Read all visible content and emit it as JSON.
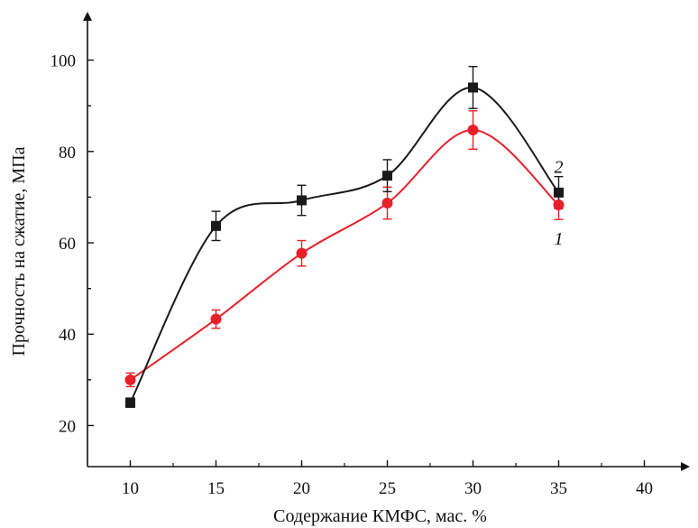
{
  "chart_data": {
    "type": "line",
    "xlabel": "Содержание КМФС, мас. %",
    "ylabel": "Прочность на сжатие, МПа",
    "xlim": [
      7.5,
      42.5
    ],
    "ylim": [
      11,
      110
    ],
    "xticks": [
      10,
      15,
      20,
      25,
      30,
      35,
      40
    ],
    "yticks": [
      20,
      40,
      60,
      80,
      100
    ],
    "xtick_labels": [
      "10",
      "15",
      "20",
      "25",
      "30",
      "35",
      "40"
    ],
    "ytick_labels": [
      "20",
      "40",
      "60",
      "80",
      "100"
    ],
    "grid": false,
    "legend": "none",
    "series": [
      {
        "label": "1",
        "color": "#e8202a",
        "marker": "circle",
        "x": [
          10,
          15,
          20,
          25,
          30,
          35
        ],
        "y": [
          30,
          43.3,
          57.7,
          68.7,
          84.7,
          68.3
        ],
        "err": [
          1.5,
          2,
          2.8,
          3.5,
          4.2,
          3.2
        ]
      },
      {
        "label": "2",
        "color": "#1a1a1a",
        "marker": "square",
        "x": [
          10,
          15,
          20,
          25,
          30,
          35
        ],
        "y": [
          25,
          63.7,
          69.3,
          74.7,
          94,
          71
        ],
        "err": [
          1,
          3.2,
          3.3,
          3.5,
          4.6,
          3.5
        ]
      }
    ]
  }
}
